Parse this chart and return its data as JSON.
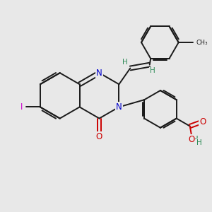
{
  "background_color": "#e8e8e8",
  "bond_color": "#1a1a1a",
  "N_color": "#0000cc",
  "O_color": "#cc0000",
  "I_color": "#cc00cc",
  "H_color": "#2e8b57",
  "figsize": [
    3.0,
    3.0
  ],
  "dpi": 100,
  "xlim": [
    0,
    10
  ],
  "ylim": [
    0,
    10
  ]
}
